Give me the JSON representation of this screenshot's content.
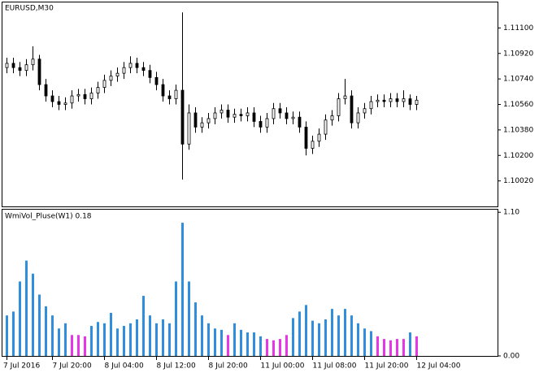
{
  "chart_data": [
    {
      "type": "candlestick",
      "title": "EURUSD,M30",
      "color": "#000000",
      "categories": [
        "7 Jul 2016",
        null,
        null,
        null,
        null,
        null,
        null,
        "7 Jul 20:00",
        null,
        null,
        null,
        null,
        null,
        null,
        null,
        "8 Jul 04:00",
        null,
        null,
        null,
        null,
        null,
        null,
        null,
        "8 Jul 12:00",
        null,
        null,
        null,
        null,
        null,
        null,
        null,
        "8 Jul 20:00",
        null,
        null,
        null,
        null,
        null,
        null,
        null,
        "11 Jul 00:00",
        null,
        null,
        null,
        null,
        null,
        null,
        null,
        "11 Jul 08:00",
        null,
        null,
        null,
        null,
        null,
        null,
        null,
        "11 Jul 20:00",
        null,
        null,
        null,
        null,
        null,
        null,
        null,
        "12 Jul 04:00"
      ],
      "open": [
        1.1082,
        1.1085,
        1.1082,
        1.108,
        1.1084,
        1.1088,
        1.107,
        1.1062,
        1.1058,
        1.1056,
        1.1057,
        1.1062,
        1.1063,
        1.106,
        1.1064,
        1.1068,
        1.1073,
        1.1076,
        1.1078,
        1.1082,
        1.1085,
        1.1082,
        1.108,
        1.1075,
        1.107,
        1.1062,
        1.106,
        1.1066,
        1.1028,
        1.105,
        1.104,
        1.1043,
        1.1046,
        1.105,
        1.1052,
        1.1047,
        1.1049,
        1.1048,
        1.105,
        1.1044,
        1.104,
        1.1046,
        1.1053,
        1.105,
        1.1046,
        1.1047,
        1.104,
        1.1025,
        1.103,
        1.1035,
        1.1045,
        1.1048,
        1.106,
        1.1062,
        1.1043,
        1.105,
        1.1053,
        1.1058,
        1.1059,
        1.1058,
        1.106,
        1.1058,
        1.106,
        1.1056
      ],
      "high": [
        1.1089,
        1.1089,
        1.1086,
        1.1088,
        1.1097,
        1.1091,
        1.1074,
        1.1066,
        1.1062,
        1.1061,
        1.1066,
        1.1067,
        1.1067,
        1.1068,
        1.1072,
        1.1077,
        1.108,
        1.1082,
        1.1086,
        1.109,
        1.1089,
        1.1086,
        1.1084,
        1.1079,
        1.1074,
        1.1066,
        1.107,
        1.1121,
        1.1056,
        1.1054,
        1.1047,
        1.105,
        1.1054,
        1.1056,
        1.1056,
        1.1053,
        1.1053,
        1.1054,
        1.1054,
        1.1048,
        1.105,
        1.1057,
        1.1057,
        1.1054,
        1.1051,
        1.1051,
        1.1044,
        1.1034,
        1.1039,
        1.1049,
        1.1052,
        1.1064,
        1.1074,
        1.1066,
        1.1054,
        1.1057,
        1.1062,
        1.1063,
        1.1063,
        1.1064,
        1.1064,
        1.1066,
        1.1063,
        1.1062
      ],
      "low": [
        1.1078,
        1.1078,
        1.1076,
        1.1076,
        1.108,
        1.1066,
        1.1058,
        1.1054,
        1.1052,
        1.1052,
        1.1053,
        1.1058,
        1.1056,
        1.1056,
        1.106,
        1.1064,
        1.1069,
        1.1072,
        1.1074,
        1.1078,
        1.1078,
        1.1076,
        1.1071,
        1.1066,
        1.1058,
        1.1056,
        1.1056,
        1.1003,
        1.1024,
        1.1036,
        1.1036,
        1.1039,
        1.1042,
        1.1046,
        1.1043,
        1.1043,
        1.1044,
        1.1044,
        1.104,
        1.1036,
        1.1036,
        1.1042,
        1.1046,
        1.1042,
        1.1042,
        1.1036,
        1.102,
        1.1021,
        1.1026,
        1.1031,
        1.1041,
        1.1044,
        1.1056,
        1.1039,
        1.1039,
        1.1046,
        1.1049,
        1.1054,
        1.1054,
        1.1054,
        1.1054,
        1.1054,
        1.1052,
        1.1052
      ],
      "close": [
        1.1085,
        1.1082,
        1.108,
        1.1084,
        1.1088,
        1.107,
        1.1062,
        1.1058,
        1.1056,
        1.1057,
        1.1062,
        1.1063,
        1.106,
        1.1064,
        1.1068,
        1.1073,
        1.1076,
        1.1078,
        1.1082,
        1.1085,
        1.1082,
        1.108,
        1.1075,
        1.107,
        1.1062,
        1.106,
        1.1066,
        1.1028,
        1.105,
        1.104,
        1.1043,
        1.1046,
        1.105,
        1.1052,
        1.1047,
        1.1049,
        1.1048,
        1.105,
        1.1044,
        1.104,
        1.1046,
        1.1053,
        1.105,
        1.1046,
        1.1047,
        1.104,
        1.1025,
        1.103,
        1.1035,
        1.1045,
        1.1048,
        1.106,
        1.1062,
        1.1043,
        1.105,
        1.1053,
        1.1058,
        1.1059,
        1.1058,
        1.106,
        1.1058,
        1.106,
        1.1056,
        1.1059
      ],
      "ylim": [
        1.0984,
        1.1128
      ],
      "yticks": [
        {
          "value": 1.111,
          "label": "1.11100"
        },
        {
          "value": 1.1092,
          "label": "1.10920"
        },
        {
          "value": 1.1074,
          "label": "1.10740"
        },
        {
          "value": 1.1056,
          "label": "1.10560"
        },
        {
          "value": 1.1038,
          "label": "1.10380"
        },
        {
          "value": 1.102,
          "label": "1.10200"
        },
        {
          "value": 1.1002,
          "label": "1.10020"
        }
      ]
    },
    {
      "type": "histogram",
      "title": "WmiVol_Pluse(W1) 0.18",
      "values": [
        0.31,
        0.34,
        0.57,
        0.73,
        0.63,
        0.47,
        0.38,
        0.31,
        0.21,
        0.25,
        0.16,
        0.16,
        0.15,
        0.23,
        0.26,
        0.25,
        0.33,
        0.21,
        0.23,
        0.25,
        0.28,
        0.46,
        0.31,
        0.25,
        0.28,
        0.25,
        0.57,
        1.02,
        0.57,
        0.41,
        0.31,
        0.25,
        0.21,
        0.2,
        0.16,
        0.25,
        0.2,
        0.18,
        0.18,
        0.15,
        0.13,
        0.12,
        0.13,
        0.16,
        0.29,
        0.34,
        0.39,
        0.27,
        0.25,
        0.28,
        0.36,
        0.31,
        0.36,
        0.31,
        0.25,
        0.21,
        0.19,
        0.15,
        0.13,
        0.12,
        0.13,
        0.13,
        0.18,
        0.15
      ],
      "colors": [
        "#2f8fdc",
        "#2f8fdc",
        "#2f8fdc",
        "#2f8fdc",
        "#2f8fdc",
        "#2f8fdc",
        "#2f8fdc",
        "#2f8fdc",
        "#2f8fdc",
        "#2f8fdc",
        "#e636e6",
        "#e636e6",
        "#e636e6",
        "#2f8fdc",
        "#2f8fdc",
        "#2f8fdc",
        "#2f8fdc",
        "#2f8fdc",
        "#2f8fdc",
        "#2f8fdc",
        "#2f8fdc",
        "#2f8fdc",
        "#2f8fdc",
        "#2f8fdc",
        "#2f8fdc",
        "#2f8fdc",
        "#2f8fdc",
        "#2f8fdc",
        "#2f8fdc",
        "#2f8fdc",
        "#2f8fdc",
        "#2f8fdc",
        "#2f8fdc",
        "#2f8fdc",
        "#e636e6",
        "#2f8fdc",
        "#2f8fdc",
        "#2f8fdc",
        "#2f8fdc",
        "#2f8fdc",
        "#e636e6",
        "#e636e6",
        "#e636e6",
        "#e636e6",
        "#2f8fdc",
        "#2f8fdc",
        "#2f8fdc",
        "#2f8fdc",
        "#2f8fdc",
        "#2f8fdc",
        "#2f8fdc",
        "#2f8fdc",
        "#2f8fdc",
        "#2f8fdc",
        "#2f8fdc",
        "#2f8fdc",
        "#2f8fdc",
        "#e636e6",
        "#e636e6",
        "#e636e6",
        "#e636e6",
        "#e636e6",
        "#2f8fdc",
        "#e636e6"
      ],
      "ylim": [
        0,
        1.12
      ],
      "yticks": [
        {
          "value": 1.1,
          "label": "1.10"
        },
        {
          "value": 0,
          "label": "0.00"
        }
      ]
    }
  ]
}
